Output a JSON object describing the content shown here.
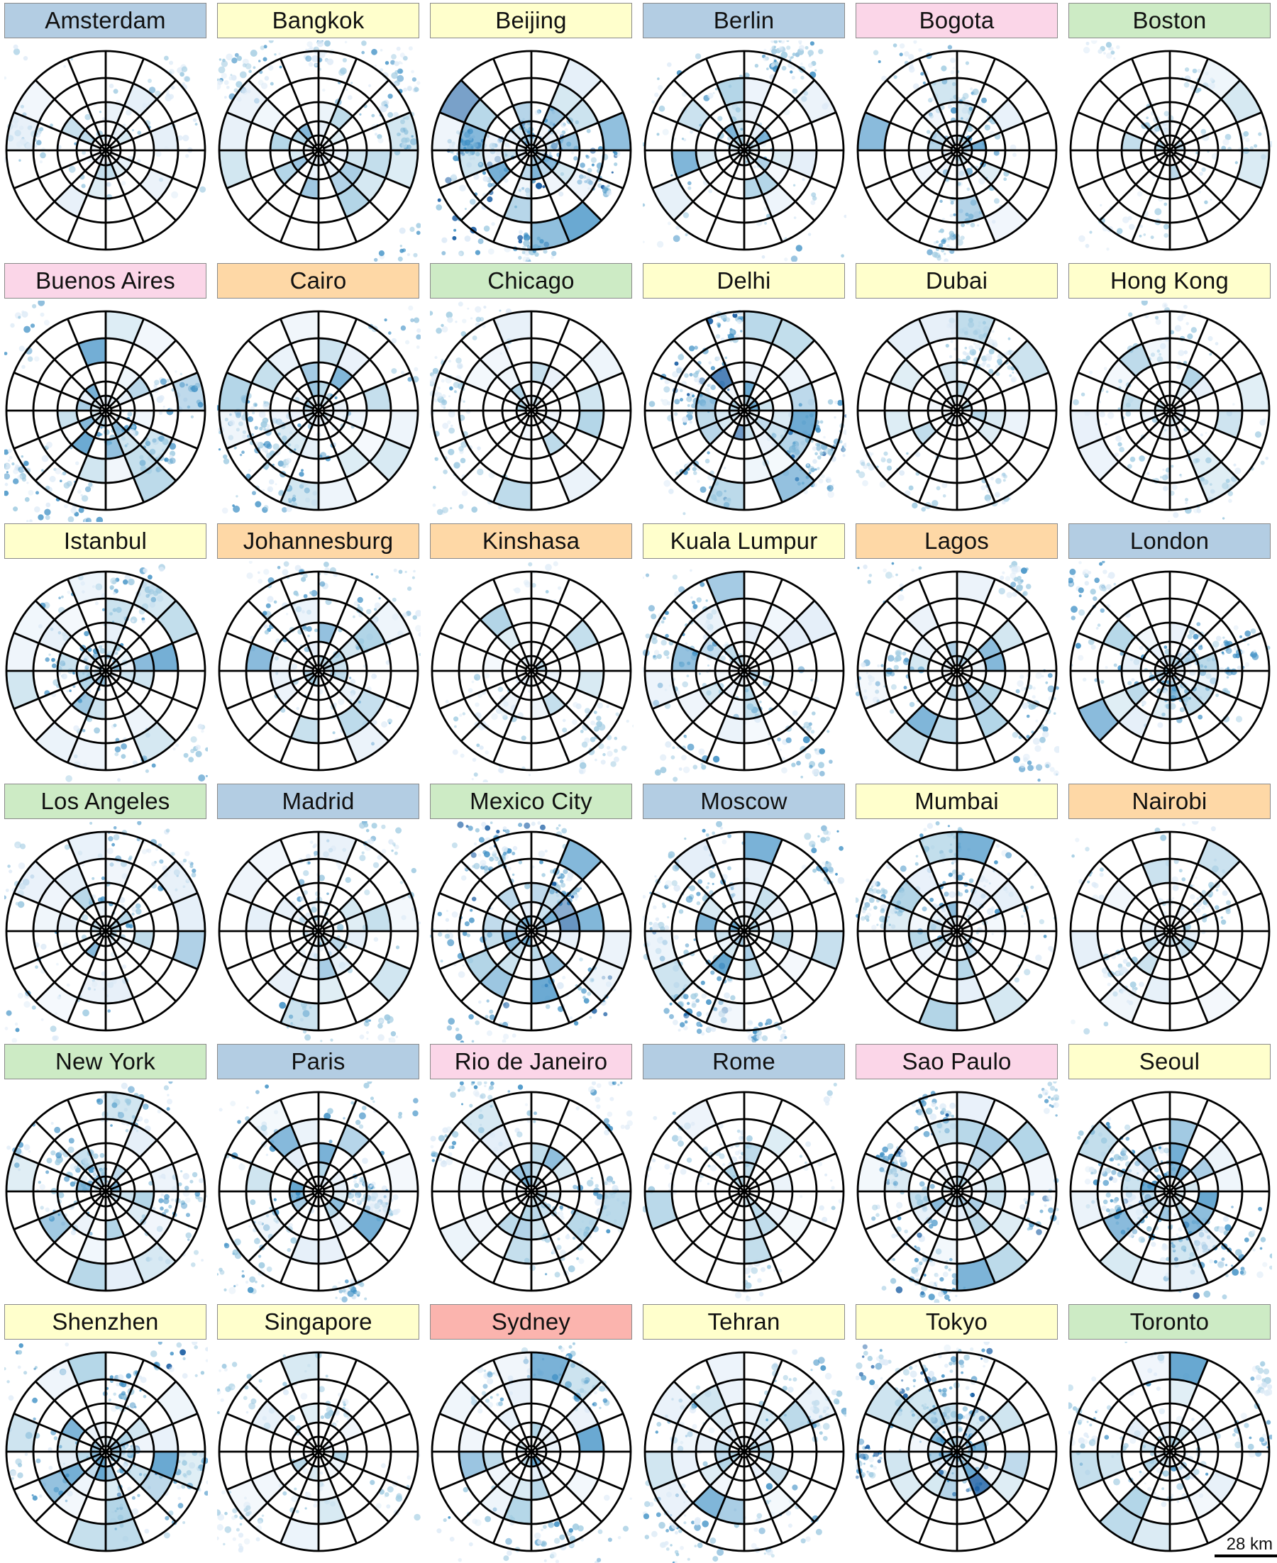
{
  "colors": {
    "europe": "#b3cde3",
    "asia": "#ffffcc",
    "south_america": "#fbd6e8",
    "north_america": "#cdebc5",
    "africa": "#fed8a6",
    "oceania": "#fbb4ae",
    "density_ramp": [
      "#deebf7",
      "#9ecae1",
      "#4292c6",
      "#08519c"
    ]
  },
  "cities": [
    {
      "name": "Amsterdam",
      "region": "europe",
      "density": 0.35
    },
    {
      "name": "Bangkok",
      "region": "asia",
      "density": 0.55
    },
    {
      "name": "Beijing",
      "region": "asia",
      "density": 0.75
    },
    {
      "name": "Berlin",
      "region": "europe",
      "density": 0.4
    },
    {
      "name": "Bogota",
      "region": "south_america",
      "density": 0.45
    },
    {
      "name": "Boston",
      "region": "north_america",
      "density": 0.2
    },
    {
      "name": "Buenos Aires",
      "region": "south_america",
      "density": 0.6
    },
    {
      "name": "Cairo",
      "region": "africa",
      "density": 0.55
    },
    {
      "name": "Chicago",
      "region": "north_america",
      "density": 0.35
    },
    {
      "name": "Delhi",
      "region": "asia",
      "density": 0.7
    },
    {
      "name": "Dubai",
      "region": "asia",
      "density": 0.3
    },
    {
      "name": "Hong Kong",
      "region": "asia",
      "density": 0.3
    },
    {
      "name": "Istanbul",
      "region": "asia",
      "density": 0.55
    },
    {
      "name": "Johannesburg",
      "region": "africa",
      "density": 0.45
    },
    {
      "name": "Kinshasa",
      "region": "africa",
      "density": 0.25
    },
    {
      "name": "Kuala Lumpur",
      "region": "asia",
      "density": 0.45
    },
    {
      "name": "Lagos",
      "region": "africa",
      "density": 0.5
    },
    {
      "name": "London",
      "region": "europe",
      "density": 0.6
    },
    {
      "name": "Los Angeles",
      "region": "north_america",
      "density": 0.5
    },
    {
      "name": "Madrid",
      "region": "europe",
      "density": 0.4
    },
    {
      "name": "Mexico City",
      "region": "north_america",
      "density": 0.7
    },
    {
      "name": "Moscow",
      "region": "europe",
      "density": 0.65
    },
    {
      "name": "Mumbai",
      "region": "asia",
      "density": 0.45
    },
    {
      "name": "Nairobi",
      "region": "africa",
      "density": 0.3
    },
    {
      "name": "New York",
      "region": "north_america",
      "density": 0.55
    },
    {
      "name": "Paris",
      "region": "europe",
      "density": 0.55
    },
    {
      "name": "Rio de Janeiro",
      "region": "south_america",
      "density": 0.5
    },
    {
      "name": "Rome",
      "region": "europe",
      "density": 0.25
    },
    {
      "name": "Sao Paulo",
      "region": "south_america",
      "density": 0.65
    },
    {
      "name": "Seoul",
      "region": "asia",
      "density": 0.65
    },
    {
      "name": "Shenzhen",
      "region": "asia",
      "density": 0.65
    },
    {
      "name": "Singapore",
      "region": "asia",
      "density": 0.3
    },
    {
      "name": "Sydney",
      "region": "oceania",
      "density": 0.45
    },
    {
      "name": "Tehran",
      "region": "asia",
      "density": 0.5
    },
    {
      "name": "Tokyo",
      "region": "asia",
      "density": 0.8
    },
    {
      "name": "Toronto",
      "region": "north_america",
      "density": 0.4
    }
  ],
  "scale_bar": {
    "label": "28 km"
  }
}
